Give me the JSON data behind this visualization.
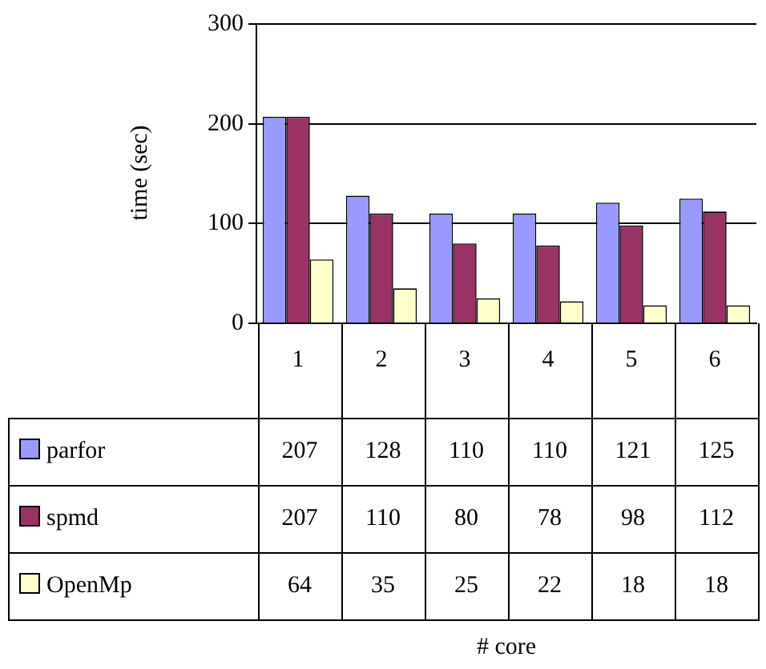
{
  "chart_data": {
    "type": "bar",
    "annotations": [
      "# core"
    ],
    "ylabel": "time (sec)",
    "categories": [
      "1",
      "2",
      "3",
      "4",
      "5",
      "6"
    ],
    "series": [
      {
        "name": "parfor",
        "color": "#9999ff",
        "values": [
          207,
          128,
          110,
          110,
          121,
          125
        ]
      },
      {
        "name": "spmd",
        "color": "#993366",
        "values": [
          207,
          110,
          80,
          78,
          98,
          112
        ]
      },
      {
        "name": "OpenMp",
        "color": "#ffffcc",
        "values": [
          64,
          35,
          25,
          22,
          18,
          18
        ]
      }
    ],
    "ylim": [
      0,
      300
    ],
    "yticks": [
      0,
      100,
      200,
      300
    ],
    "grid": "y",
    "legend": "bottom",
    "data_labels": true
  }
}
